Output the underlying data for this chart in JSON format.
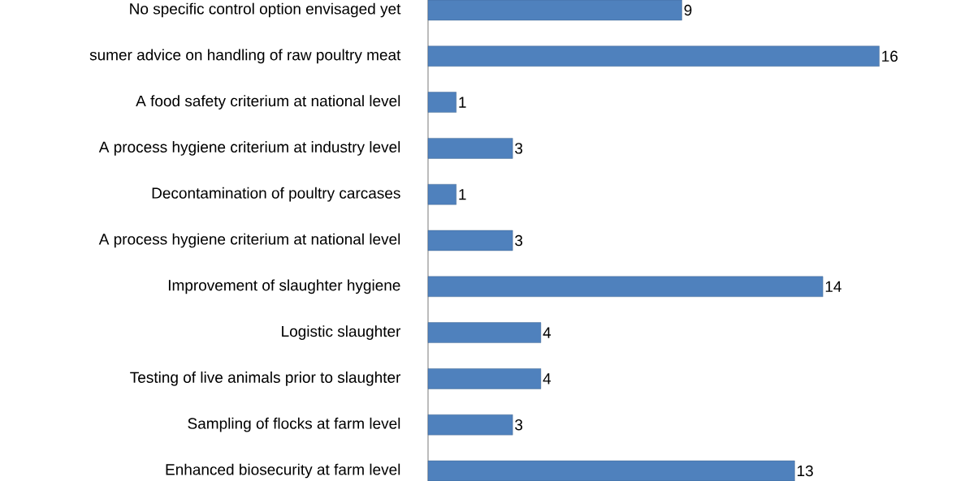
{
  "chart_data": {
    "type": "bar",
    "orientation": "horizontal",
    "data_labels": true,
    "color": "#4f81bd",
    "categories": [
      "No specific control option envisaged yet",
      "sumer advice on handling of raw poultry meat",
      "A food safety criterium at national level",
      "A process hygiene criterium at industry level",
      "Decontamination of poultry carcases",
      "A process hygiene criterium at national level",
      "Improvement of slaughter hygiene",
      "Logistic slaughter",
      "Testing of live animals prior to slaughter",
      "Sampling of flocks at farm level",
      "Enhanced biosecurity at farm level"
    ],
    "values": [
      9,
      16,
      1,
      3,
      1,
      3,
      14,
      4,
      4,
      3,
      13
    ]
  }
}
